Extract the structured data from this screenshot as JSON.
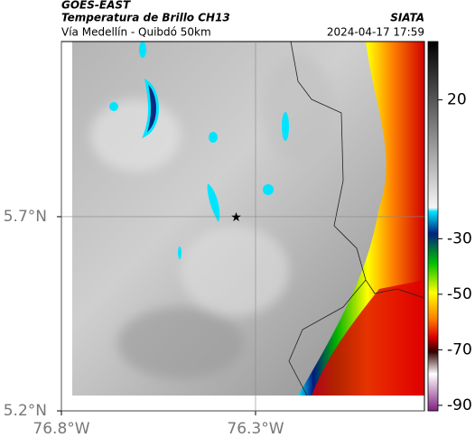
{
  "header": {
    "product": "GOES-EAST",
    "title": "Temperatura de Brillo CH13",
    "source": "SIATA",
    "subtitle": "Vía Medellín - Quibdó 50km",
    "datetime": "2024-04-17 17:59"
  },
  "map": {
    "lonlim": [
      -76.8,
      -75.865
    ],
    "latlim": [
      5.2,
      6.151
    ],
    "xticks": [
      {
        "value": -76.8,
        "label": "76.8°W"
      },
      {
        "value": -76.3,
        "label": "76.3°W"
      }
    ],
    "yticks": [
      {
        "value": 5.7,
        "label": "5.7°N"
      },
      {
        "value": 5.2,
        "label": "5.2°N"
      }
    ],
    "marker": {
      "lon": -76.35,
      "lat": 5.7
    }
  },
  "colorbar": {
    "lim": [
      -92,
      41
    ],
    "ticks": [
      20,
      -30,
      -50,
      -70,
      -90
    ]
  }
}
